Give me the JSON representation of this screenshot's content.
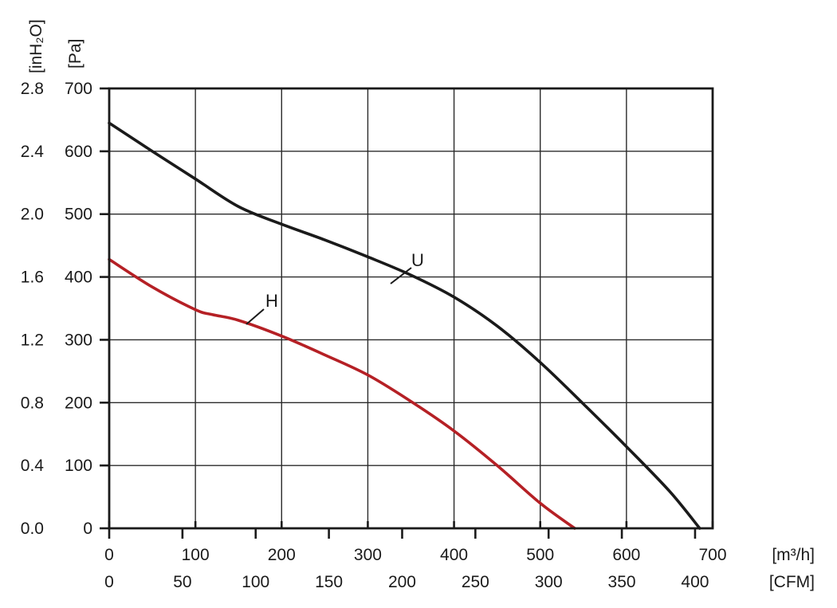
{
  "chart_data": {
    "type": "line",
    "x_axes": [
      {
        "unit": "[m³/h]",
        "ticks": [
          0,
          100,
          200,
          300,
          400,
          500,
          600,
          700
        ],
        "range": [
          0,
          700
        ]
      },
      {
        "unit": "[CFM]",
        "ticks": [
          0,
          50,
          100,
          150,
          200,
          250,
          300,
          350,
          400
        ],
        "range": [
          0,
          412
        ]
      }
    ],
    "y_axes": [
      {
        "unit": "[Pa]",
        "ticks": [
          0,
          100,
          200,
          300,
          400,
          500,
          600,
          700
        ],
        "range": [
          0,
          700
        ]
      },
      {
        "unit": "[inH₂O]",
        "ticks": [
          "0.0",
          "0.4",
          "0.8",
          "1.2",
          "1.6",
          "2.0",
          "2.4",
          "2.8"
        ],
        "range": [
          0,
          2.8
        ]
      }
    ],
    "grid": true,
    "series": [
      {
        "name": "U",
        "color": "#1a1a1a",
        "points": [
          [
            0,
            645
          ],
          [
            50,
            600
          ],
          [
            100,
            556
          ],
          [
            150,
            512
          ],
          [
            200,
            484
          ],
          [
            250,
            459
          ],
          [
            300,
            432
          ],
          [
            350,
            403
          ],
          [
            400,
            368
          ],
          [
            450,
            322
          ],
          [
            500,
            264
          ],
          [
            550,
            198
          ],
          [
            600,
            130
          ],
          [
            650,
            59
          ],
          [
            685,
            0
          ]
        ]
      },
      {
        "name": "H",
        "color": "#b52025",
        "points": [
          [
            0,
            428
          ],
          [
            50,
            384
          ],
          [
            100,
            348
          ],
          [
            120,
            340
          ],
          [
            150,
            331
          ],
          [
            200,
            306
          ],
          [
            250,
            276
          ],
          [
            300,
            244
          ],
          [
            350,
            202
          ],
          [
            400,
            155
          ],
          [
            450,
            100
          ],
          [
            500,
            40
          ],
          [
            540,
            0
          ]
        ]
      }
    ]
  }
}
